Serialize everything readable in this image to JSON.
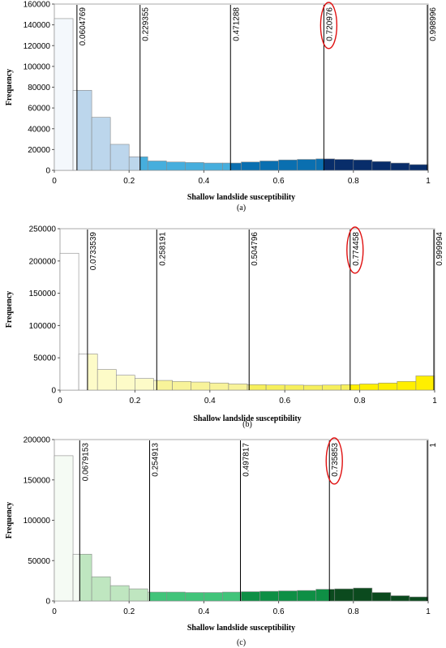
{
  "chart_data": [
    {
      "type": "bar",
      "caption": "(a)",
      "xlabel": "Shallow landslide susceptibility",
      "ylabel": "Frequency",
      "xlim": [
        0,
        1
      ],
      "ylim": [
        0,
        160000
      ],
      "yticks": [
        0,
        20000,
        40000,
        60000,
        80000,
        100000,
        120000,
        140000,
        160000
      ],
      "xticks": [
        0,
        0.2,
        0.4,
        0.6,
        0.8,
        1
      ],
      "bin_width": 0.05,
      "values": [
        146000,
        77000,
        51000,
        25000,
        13000,
        9000,
        8000,
        7500,
        7000,
        7000,
        8000,
        9000,
        10000,
        10500,
        11000,
        10500,
        10000,
        8500,
        7000,
        5500
      ],
      "class_colors": [
        "#f4f8fc",
        "#bcd6ec",
        "#46aedd",
        "#0a6fb0",
        "#082d6a"
      ],
      "breaks": [
        {
          "x": 0.0604769,
          "label": "0.0604769"
        },
        {
          "x": 0.229355,
          "label": "0.229355"
        },
        {
          "x": 0.471288,
          "label": "0.471288"
        },
        {
          "x": 0.720976,
          "label": "0.720976",
          "circled": true
        },
        {
          "x": 0.998996,
          "label": "0.998996"
        }
      ]
    },
    {
      "type": "bar",
      "caption": "(b)",
      "xlabel": "Shallow landslide susceptibility",
      "ylabel": "Frequency",
      "xlim": [
        0,
        1
      ],
      "ylim": [
        0,
        250000
      ],
      "yticks": [
        0,
        50000,
        100000,
        150000,
        200000,
        250000
      ],
      "xticks": [
        0,
        0.2,
        0.4,
        0.6,
        0.8,
        1
      ],
      "bin_width": 0.05,
      "values": [
        212000,
        56000,
        32000,
        23000,
        18000,
        15000,
        13500,
        12500,
        11000,
        9500,
        8500,
        8000,
        7800,
        7500,
        7800,
        8500,
        9500,
        11000,
        13500,
        22000
      ],
      "class_colors": [
        "#ffffff",
        "#fdfbc8",
        "#f8f39a",
        "#f6ef5c",
        "#ffef00"
      ],
      "breaks": [
        {
          "x": 0.0733539,
          "label": "0.0733539"
        },
        {
          "x": 0.258191,
          "label": "0.258191"
        },
        {
          "x": 0.504796,
          "label": "0.504796"
        },
        {
          "x": 0.774458,
          "label": "0.774458",
          "circled": true
        },
        {
          "x": 0.999994,
          "label": "0.999994"
        }
      ]
    },
    {
      "type": "bar",
      "caption": "(c)",
      "xlabel": "Shallow landslide susceptibility",
      "ylabel": "Frequency",
      "xlim": [
        0,
        1
      ],
      "ylim": [
        0,
        200000
      ],
      "yticks": [
        0,
        50000,
        100000,
        150000,
        200000
      ],
      "xticks": [
        0,
        0.2,
        0.4,
        0.6,
        0.8,
        1
      ],
      "bin_width": 0.05,
      "values": [
        180000,
        58000,
        30000,
        19000,
        15000,
        11000,
        11000,
        10500,
        10500,
        11000,
        11500,
        12000,
        12500,
        13000,
        14500,
        15000,
        16000,
        10500,
        6500,
        5000
      ],
      "class_colors": [
        "#f5fbf4",
        "#bfe6c0",
        "#41c47a",
        "#0e8f45",
        "#0b4a1e"
      ],
      "breaks": [
        {
          "x": 0.0679153,
          "label": "0.0679153"
        },
        {
          "x": 0.254913,
          "label": "0.254913"
        },
        {
          "x": 0.497817,
          "label": "0.497817"
        },
        {
          "x": 0.735853,
          "label": "0.735853",
          "circled": true
        },
        {
          "x": 1.0,
          "label": "1"
        }
      ]
    }
  ]
}
